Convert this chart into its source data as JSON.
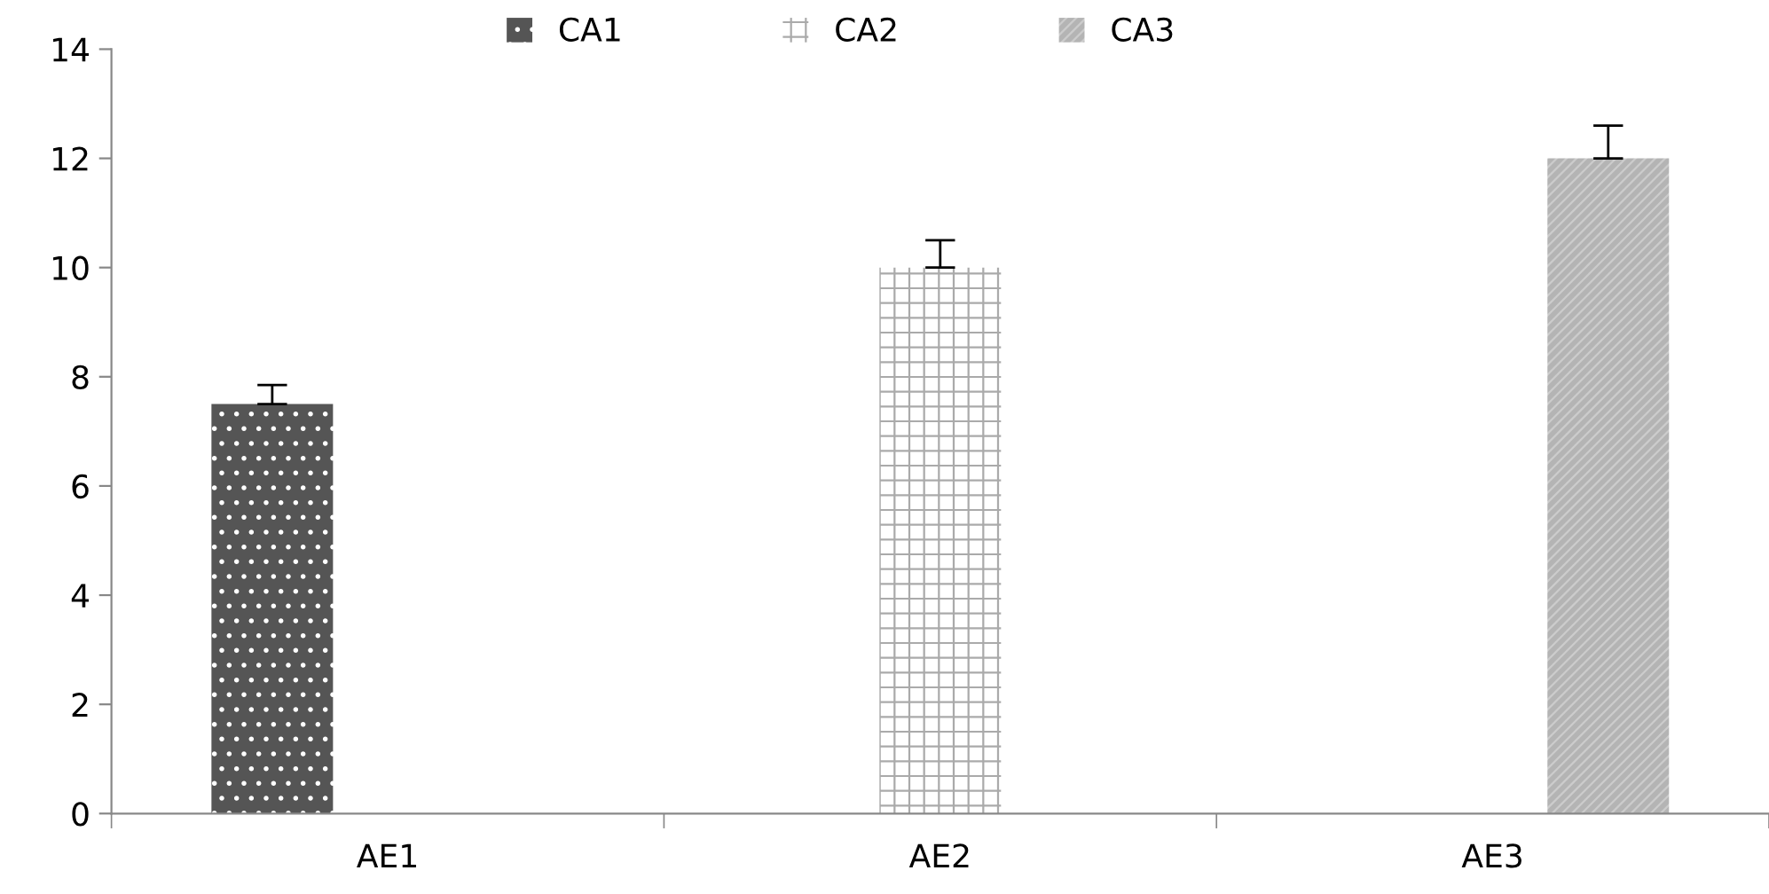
{
  "chart_data": {
    "type": "bar",
    "categories": [
      "AE1",
      "AE2",
      "AE3"
    ],
    "series": [
      {
        "name": "CA1",
        "color": "#555555",
        "values": [
          7.5,
          null,
          null
        ],
        "errors": [
          [
            7.5,
            7.85
          ],
          null,
          null
        ]
      },
      {
        "name": "CA2",
        "color": "#ffffff",
        "values": [
          null,
          10,
          null
        ],
        "errors": [
          null,
          [
            10,
            10.5
          ],
          null
        ]
      },
      {
        "name": "CA3",
        "color": "#b4b4b4",
        "values": [
          null,
          null,
          12
        ],
        "errors": [
          null,
          null,
          [
            12,
            12.6
          ]
        ]
      }
    ],
    "ylim": [
      0,
      14
    ],
    "yticks": [
      0,
      2,
      4,
      6,
      8,
      10,
      12,
      14
    ],
    "grid": false,
    "legend": "top"
  }
}
